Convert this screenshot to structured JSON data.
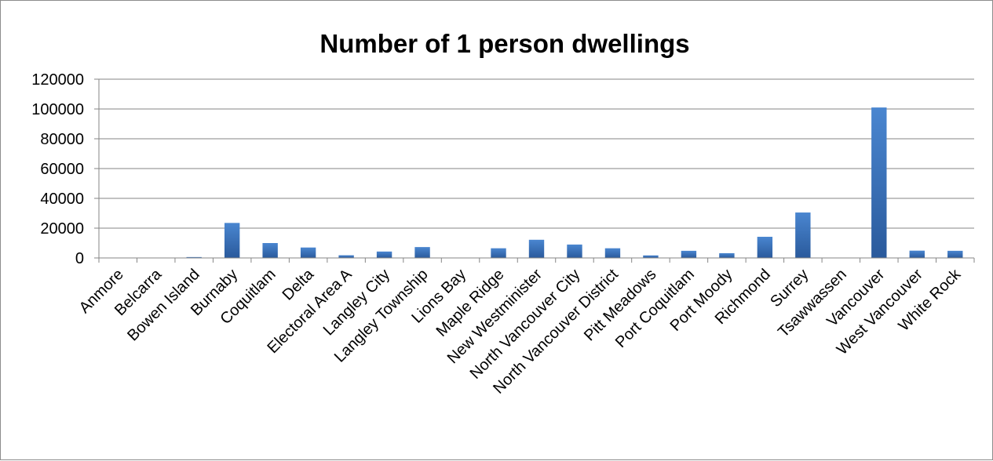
{
  "chart_data": {
    "type": "bar",
    "title": "Number of 1 person dwellings",
    "xlabel": "",
    "ylabel": "",
    "ylim": [
      0,
      120000
    ],
    "y_ticks": [
      "0",
      "20000",
      "40000",
      "60000",
      "80000",
      "100000",
      "120000"
    ],
    "y_tick_values": [
      0,
      20000,
      40000,
      60000,
      80000,
      100000,
      120000
    ],
    "grid": "horizontal",
    "legend": "none",
    "bar_color": "#4a86d0",
    "bar_color_dark": "#2a5a9c",
    "gridline_color": "#868686",
    "categories": [
      "Anmore",
      "Belcarra",
      "Bowen Island",
      "Burnaby",
      "Coquitlam",
      "Delta",
      "Electoral Area A",
      "Langley City",
      "Langley Township",
      "Lions Bay",
      "Maple Ridge",
      "New Westminister",
      "North Vancouver City",
      "North Vancouver District",
      "Pitt Meadows",
      "Port Coquitlam",
      "Port Moody",
      "Richmond",
      "Surrey",
      "Tsawwassen",
      "Vancouver",
      "West Vancouver",
      "White Rock"
    ],
    "values": [
      200,
      100,
      600,
      23500,
      10000,
      7000,
      1800,
      4300,
      7300,
      250,
      6500,
      12200,
      9000,
      6500,
      1700,
      4800,
      3200,
      14200,
      30500,
      50,
      101000,
      4900,
      4800
    ]
  }
}
